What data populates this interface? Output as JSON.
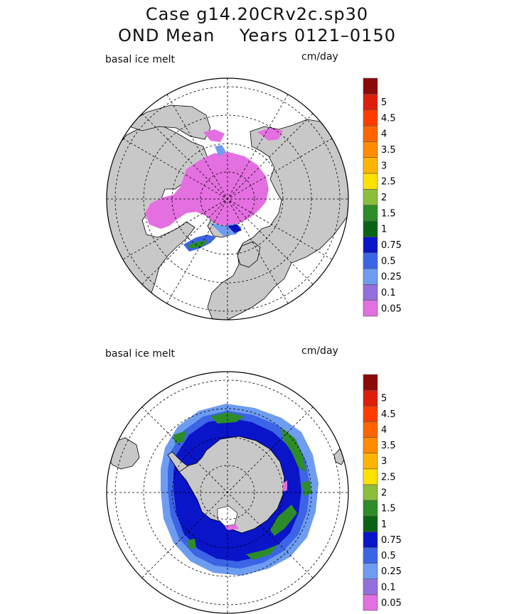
{
  "title": {
    "line1": "Case g14.20CRv2c.sp30",
    "line2": "OND Mean    Years 0121–0150"
  },
  "colors": {
    "ocean": "#ffffff",
    "land": "#c8c8c8",
    "coast": "#000000",
    "grid": "#000000"
  },
  "colorbar": {
    "levels": [
      {
        "value": "0.05",
        "color": "#e46fe0"
      },
      {
        "value": "0.1",
        "color": "#9370db"
      },
      {
        "value": "0.25",
        "color": "#6e9cf0"
      },
      {
        "value": "0.5",
        "color": "#3c64e6"
      },
      {
        "value": "0.75",
        "color": "#0a14c8"
      },
      {
        "value": "1",
        "color": "#0a6414"
      },
      {
        "value": "1.5",
        "color": "#2d8c28"
      },
      {
        "value": "2",
        "color": "#8cbe3c"
      },
      {
        "value": "2.5",
        "color": "#ffe100"
      },
      {
        "value": "3",
        "color": "#ffb400"
      },
      {
        "value": "3.5",
        "color": "#ff8c00"
      },
      {
        "value": "4",
        "color": "#ff6400"
      },
      {
        "value": "4.5",
        "color": "#ff3c00"
      },
      {
        "value": "5",
        "color": "#dc1e0a"
      },
      {
        "value": "",
        "color": "#8c0a0a"
      }
    ]
  },
  "panels": [
    {
      "id": "north",
      "variable_label": "basal ice melt",
      "units_label": "cm/day"
    },
    {
      "id": "south",
      "variable_label": "basal ice melt",
      "units_label": "cm/day"
    }
  ]
}
